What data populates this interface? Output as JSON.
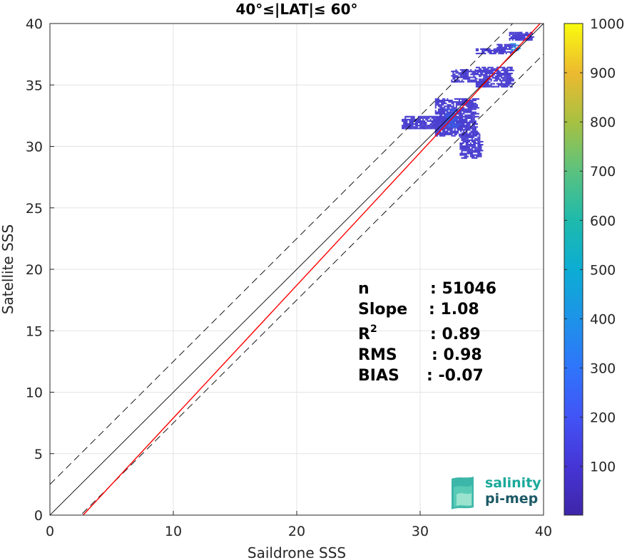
{
  "chart_data": {
    "type": "heatmap",
    "title": "40°≤|LAT|≤ 60°",
    "xlabel": "Saildrone SSS",
    "ylabel": "Satellite SSS",
    "xlim": [
      0,
      40
    ],
    "ylim": [
      0,
      40
    ],
    "xticks": [
      "0",
      "10",
      "20",
      "30",
      "40"
    ],
    "yticks": [
      "0",
      "5",
      "10",
      "15",
      "20",
      "25",
      "30",
      "35",
      "40"
    ],
    "grid": true,
    "colorbar": {
      "range": [
        1,
        1000
      ],
      "ticks": [
        "100",
        "200",
        "300",
        "400",
        "500",
        "600",
        "700",
        "800",
        "900",
        "1000"
      ],
      "colormap": "parula"
    },
    "lines": [
      {
        "kind": "identity",
        "color": "#000000",
        "style": "solid",
        "offset": 0
      },
      {
        "kind": "identity-plus",
        "color": "#000000",
        "style": "dashed",
        "offset": 2.5
      },
      {
        "kind": "identity-minus",
        "color": "#000000",
        "style": "dashed",
        "offset": -2.5
      },
      {
        "kind": "regression",
        "color": "#ff0000",
        "style": "solid",
        "slope": 1.08,
        "intercept": -2.9
      }
    ],
    "density_clusters": [
      {
        "x": [
          31.2,
          34.5
        ],
        "y": [
          30.8,
          33.8
        ],
        "color": "#4a3fd0",
        "count_level": "low"
      },
      {
        "x": [
          28.5,
          33.5
        ],
        "y": [
          31.4,
          32.4
        ],
        "color": "#4a3fd0",
        "count_level": "low"
      },
      {
        "x": [
          32.0,
          33.0
        ],
        "y": [
          31.5,
          33.0
        ],
        "color": "#3d56e0",
        "count_level": "medium"
      },
      {
        "x": [
          33.2,
          34.8
        ],
        "y": [
          29.0,
          31.0
        ],
        "color": "#4a3fd0",
        "count_level": "low"
      },
      {
        "x": [
          32.5,
          34.5
        ],
        "y": [
          35.2,
          36.2
        ],
        "color": "#4a3fd0",
        "count_level": "low"
      },
      {
        "x": [
          34.5,
          37.3
        ],
        "y": [
          34.8,
          36.4
        ],
        "color": "#4a3fd0",
        "count_level": "low"
      },
      {
        "x": [
          34.5,
          36.8
        ],
        "y": [
          37.5,
          37.9
        ],
        "color": "#4a3fd0",
        "count_level": "low"
      },
      {
        "x": [
          36.2,
          37.7
        ],
        "y": [
          37.5,
          38.3
        ],
        "color": "#4a3fd0",
        "count_level": "low"
      },
      {
        "x": [
          37.2,
          39.0
        ],
        "y": [
          38.6,
          39.2
        ],
        "color": "#4a3fd0",
        "count_level": "low"
      },
      {
        "x": [
          37.3,
          37.8
        ],
        "y": [
          37.8,
          38.3
        ],
        "color": "#2a8fe6",
        "count_level": "high"
      }
    ]
  },
  "stats": {
    "rows": [
      {
        "label": "n",
        "value": ": 51046"
      },
      {
        "label": "Slope",
        "value": ": 1.08"
      },
      {
        "label": "R",
        "sup": "2",
        "value": ": 0.89"
      },
      {
        "label": "RMS",
        "value": ": 0.98"
      },
      {
        "label": "BIAS",
        "value": ": -0.07"
      }
    ]
  },
  "logo": {
    "line1": "salinity",
    "line2": "pi-mep",
    "color1": "#1aa99a",
    "color2": "#1c5a66"
  }
}
